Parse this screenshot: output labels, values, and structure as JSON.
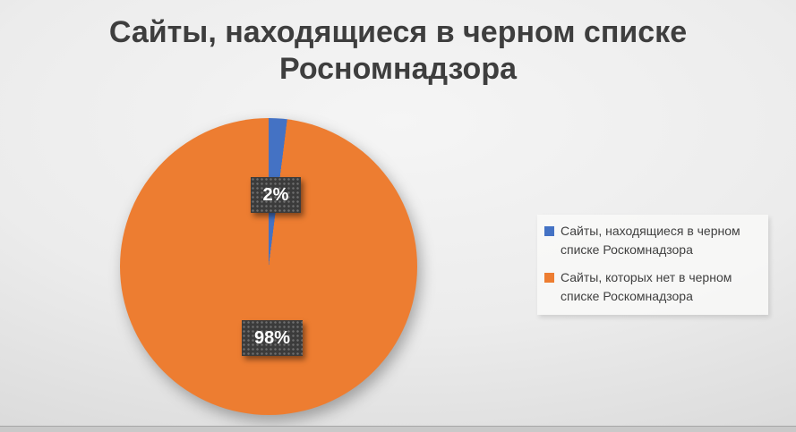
{
  "title": {
    "text": "Сайты, находящиеся в черном списке\nРосномнадзора"
  },
  "chart_data": {
    "type": "pie",
    "title": "Сайты, находящиеся в черном списке Росномнадзора",
    "categories": [
      "Сайты, находящиеся в черном списке Роскомнадзора",
      "Сайты, которых нет в черном списке Роскомнадзора"
    ],
    "values": [
      2,
      98
    ],
    "unit": "%",
    "colors": [
      "#4472C4",
      "#ED7D31"
    ],
    "data_labels": [
      "2%",
      "98%"
    ],
    "start_angle_deg": 0,
    "direction": "clockwise",
    "legend_position": "right",
    "label_style": {
      "background": "#3B3B3B",
      "pattern": "dotted",
      "text_color": "#FFFFFF"
    }
  },
  "theme": {
    "background_center": "#F5F5F5",
    "background_edge": "#CFCFCF",
    "title_color": "#3E3E3E",
    "legend_text_color": "#404040",
    "legend_background": "#FAFAF9"
  }
}
